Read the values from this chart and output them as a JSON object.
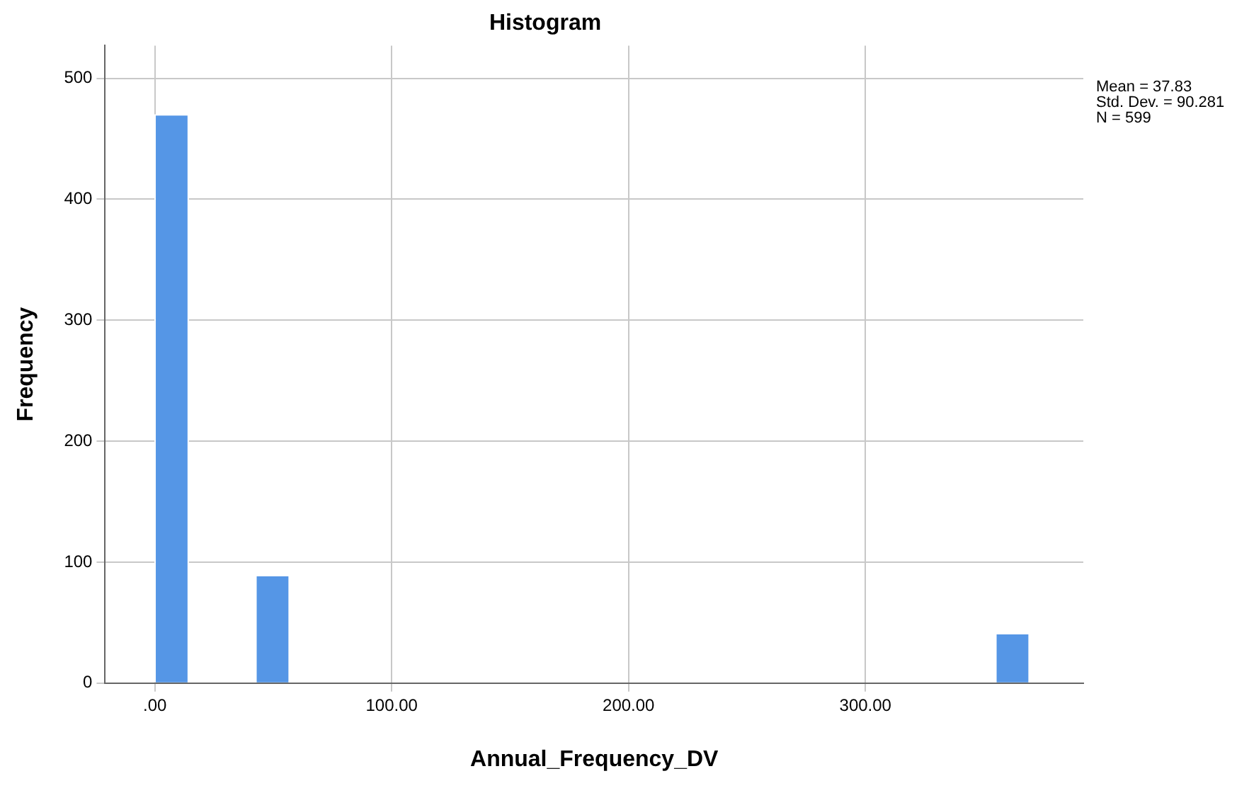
{
  "chart_data": {
    "type": "histogram",
    "title": "Histogram",
    "xlabel": "Annual_Frequency_DV",
    "ylabel": "Frequency",
    "bins": [
      0,
      14.2,
      28.4,
      42.6,
      56.8,
      71,
      85.2,
      99.4,
      113.6,
      127.8,
      142,
      156.2,
      170.4,
      184.6,
      198.8,
      213,
      227.2,
      241.4,
      255.6,
      269.8,
      284,
      298.2,
      312.4,
      326.6,
      340.8,
      355,
      369.2
    ],
    "values": [
      470,
      0,
      0,
      89,
      0,
      0,
      0,
      0,
      0,
      0,
      0,
      0,
      0,
      0,
      0,
      0,
      0,
      0,
      0,
      0,
      0,
      0,
      0,
      0,
      0,
      41
    ],
    "color": "#5596e6",
    "xlim": [
      -21,
      392
    ],
    "xticks": [
      {
        "value": 0,
        "label": ".00"
      },
      {
        "value": 100,
        "label": "100.00"
      },
      {
        "value": 200,
        "label": "200.00"
      },
      {
        "value": 300,
        "label": "300.00"
      }
    ],
    "ylim": [
      0,
      527
    ],
    "yticks": [
      0,
      100,
      200,
      300,
      400,
      500
    ],
    "grid": true,
    "annotations": [
      "Mean = 37.83",
      "Std. Dev. = 90.281",
      "N = 599"
    ]
  }
}
